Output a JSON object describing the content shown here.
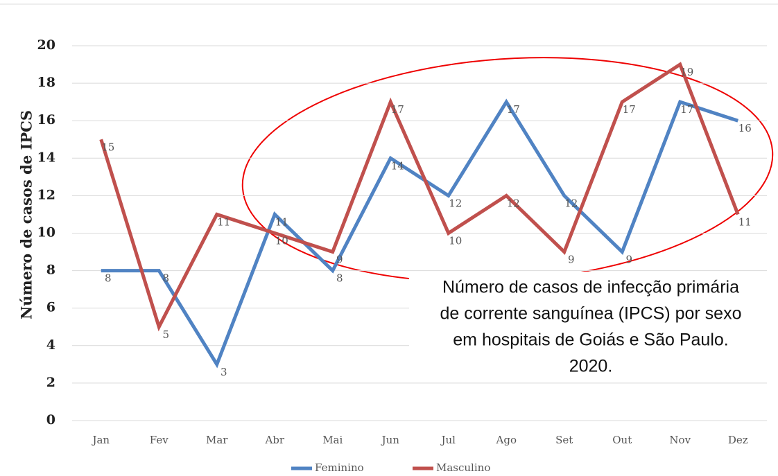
{
  "chart_data": {
    "type": "line",
    "y_label": "Número de casos de  IPCS",
    "annotation": [
      "Número de casos de infecção primária",
      "de corrente sanguínea (IPCS) por sexo",
      "em hospitais de Goiás e São Paulo.",
      "2020."
    ],
    "categories": [
      "Jan",
      "Fev",
      "Mar",
      "Abr",
      "Mai",
      "Jun",
      "Jul",
      "Ago",
      "Set",
      "Out",
      "Nov",
      "Dez"
    ],
    "series": [
      {
        "name": "Feminino",
        "color": "#5083c3",
        "values": [
          8,
          8,
          3,
          11,
          8,
          14,
          12,
          17,
          12,
          9,
          17,
          16
        ]
      },
      {
        "name": "Masculino",
        "color": "#c0504d",
        "values": [
          15,
          5,
          11,
          10,
          9,
          17,
          10,
          12,
          9,
          17,
          19,
          11
        ]
      }
    ],
    "ylim": [
      0,
      20
    ],
    "yticks": [
      0,
      2,
      4,
      6,
      8,
      10,
      12,
      14,
      16,
      18,
      20
    ],
    "grid": true,
    "legend": "bottom"
  }
}
